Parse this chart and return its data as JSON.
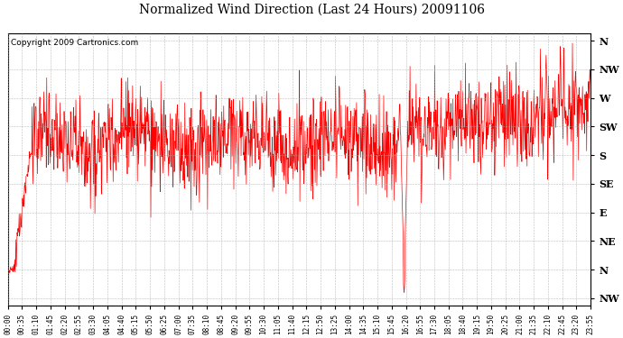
{
  "title": "Normalized Wind Direction (Last 24 Hours) 20091106",
  "copyright_text": "Copyright 2009 Cartronics.com",
  "line_color": "#FF0000",
  "bg_color": "#FFFFFF",
  "grid_color": "#AAAAAA",
  "ytick_labels_top_to_bottom": [
    "N",
    "NW",
    "W",
    "SW",
    "S",
    "SE",
    "E",
    "NE",
    "N",
    "NW"
  ],
  "ytick_values": [
    9,
    8,
    7,
    6,
    5,
    4,
    3,
    2,
    1,
    0
  ],
  "xtick_labels": [
    "00:00",
    "00:35",
    "01:10",
    "01:45",
    "02:20",
    "02:55",
    "03:30",
    "04:05",
    "04:40",
    "05:15",
    "05:50",
    "06:25",
    "07:00",
    "07:35",
    "08:10",
    "08:45",
    "09:20",
    "09:55",
    "10:30",
    "11:05",
    "11:40",
    "12:15",
    "12:50",
    "13:25",
    "14:00",
    "14:35",
    "15:10",
    "15:45",
    "16:20",
    "16:55",
    "17:30",
    "18:05",
    "18:40",
    "19:15",
    "19:50",
    "20:25",
    "21:00",
    "21:35",
    "22:10",
    "22:45",
    "23:20",
    "23:55"
  ],
  "figsize": [
    6.9,
    3.75
  ],
  "dpi": 100
}
